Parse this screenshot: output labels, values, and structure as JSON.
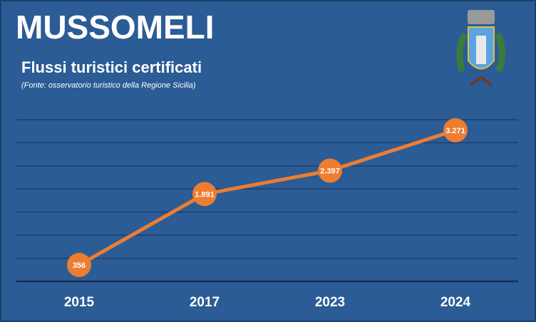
{
  "chart_data": {
    "type": "line",
    "title": "MUSSOMELI",
    "subtitle": "Flussi turistici certificati",
    "source": "(Fonte: osservatorio turistico della Regione Sicilia)",
    "categories": [
      "2015",
      "2017",
      "2023",
      "2024"
    ],
    "series": [
      {
        "name": "Flussi turistici certificati",
        "color": "#ed7d31",
        "values": [
          356,
          1891,
          2397,
          3271
        ],
        "value_labels": [
          "356",
          "1.891",
          "2.397",
          "3.271"
        ]
      }
    ],
    "ylim": [
      0,
      3500
    ],
    "yticks": [
      0,
      500,
      1000,
      1500,
      2000,
      2500,
      3000,
      3500
    ],
    "grid": true
  }
}
